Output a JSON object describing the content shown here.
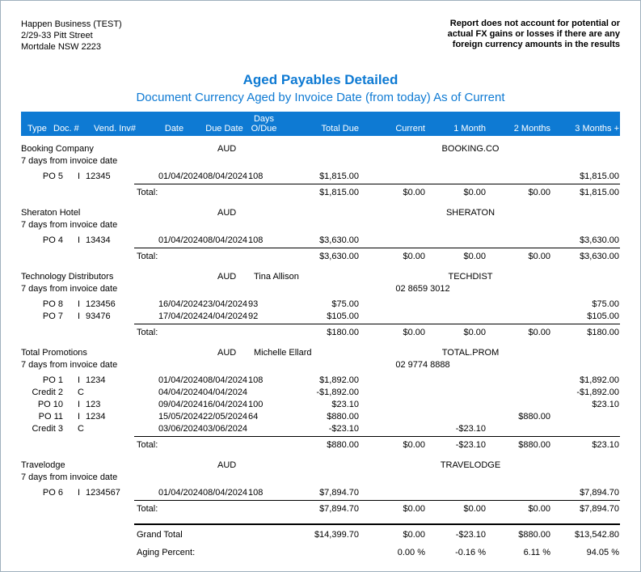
{
  "company": {
    "name": "Happen Business (TEST)",
    "address_line1": "2/29-33 Pitt Street",
    "address_line2": "Mortdale NSW 2223"
  },
  "disclaimer": {
    "line1": "Report does not account for potential or",
    "line2": "actual FX gains or losses if there are any",
    "line3": "foreign currency amounts in the results"
  },
  "report": {
    "title": "Aged Payables Detailed",
    "subtitle": "Document Currency Aged by Invoice Date (from today) As of Current"
  },
  "colors": {
    "accent_blue": "#0e7ad3",
    "header_text": "#ffffff",
    "body_text": "#000000"
  },
  "table": {
    "headers": {
      "type": "Type",
      "doc_num": "Doc. #",
      "vend_inv": "Vend. Inv#",
      "date": "Date",
      "due_date": "Due Date",
      "days_line1": "Days",
      "days_line2": "O/Due",
      "total_due": "Total Due",
      "current": "Current",
      "month1": "1 Month",
      "month2": "2 Months",
      "month3": "3 Months +"
    },
    "total_label": "Total:",
    "groups": [
      {
        "name": "Booking Company",
        "terms": "7 days from invoice date",
        "currency": "AUD",
        "contact": "",
        "code": "BOOKING.CO",
        "phone": "",
        "rows": [
          {
            "doc": "PO 5",
            "type_letter": "I",
            "vend_inv": "12345",
            "date": "01/04/2024",
            "due_date": "08/04/2024",
            "days": "108",
            "total_due": "$1,815.00",
            "month3": "$1,815.00"
          }
        ],
        "total": {
          "total_due": "$1,815.00",
          "current": "$0.00",
          "month1": "$0.00",
          "month2": "$0.00",
          "month3": "$1,815.00"
        }
      },
      {
        "name": "Sheraton Hotel",
        "terms": "7 days from invoice date",
        "currency": "AUD",
        "contact": "",
        "code": "SHERATON",
        "phone": "",
        "rows": [
          {
            "doc": "PO 4",
            "type_letter": "I",
            "vend_inv": "13434",
            "date": "01/04/2024",
            "due_date": "08/04/2024",
            "days": "108",
            "total_due": "$3,630.00",
            "month3": "$3,630.00"
          }
        ],
        "total": {
          "total_due": "$3,630.00",
          "current": "$0.00",
          "month1": "$0.00",
          "month2": "$0.00",
          "month3": "$3,630.00"
        }
      },
      {
        "name": "Technology Distributors",
        "terms": "7 days from invoice date",
        "currency": "AUD",
        "contact": "Tina Allison",
        "code": "TECHDIST",
        "phone": "02 8659 3012",
        "rows": [
          {
            "doc": "PO 8",
            "type_letter": "I",
            "vend_inv": "123456",
            "date": "16/04/2024",
            "due_date": "23/04/2024",
            "days": "93",
            "total_due": "$75.00",
            "month3": "$75.00"
          },
          {
            "doc": "PO 7",
            "type_letter": "I",
            "vend_inv": "93476",
            "date": "17/04/2024",
            "due_date": "24/04/2024",
            "days": "92",
            "total_due": "$105.00",
            "month3": "$105.00"
          }
        ],
        "total": {
          "total_due": "$180.00",
          "current": "$0.00",
          "month1": "$0.00",
          "month2": "$0.00",
          "month3": "$180.00"
        }
      },
      {
        "name": "Total Promotions",
        "terms": "7 days from invoice date",
        "currency": "AUD",
        "contact": "Michelle Ellard",
        "code": "TOTAL.PROM",
        "phone": "02 9774 8888",
        "rows": [
          {
            "doc": "PO 1",
            "type_letter": "I",
            "vend_inv": "1234",
            "date": "01/04/2024",
            "due_date": "08/04/2024",
            "days": "108",
            "total_due": "$1,892.00",
            "month3": "$1,892.00"
          },
          {
            "doc": "Credit 2",
            "type_letter": "C",
            "vend_inv": "",
            "date": "04/04/2024",
            "due_date": "04/04/2024",
            "days": "",
            "total_due": "-$1,892.00",
            "month3": "-$1,892.00"
          },
          {
            "doc": "PO 10",
            "type_letter": "I",
            "vend_inv": "123",
            "date": "09/04/2024",
            "due_date": "16/04/2024",
            "days": "100",
            "total_due": "$23.10",
            "month3": "$23.10"
          },
          {
            "doc": "PO 11",
            "type_letter": "I",
            "vend_inv": "1234",
            "date": "15/05/2024",
            "due_date": "22/05/2024",
            "days": "64",
            "total_due": "$880.00",
            "month2": "$880.00"
          },
          {
            "doc": "Credit 3",
            "type_letter": "C",
            "vend_inv": "",
            "date": "03/06/2024",
            "due_date": "03/06/2024",
            "days": "",
            "total_due": "-$23.10",
            "month1": "-$23.10"
          }
        ],
        "total": {
          "total_due": "$880.00",
          "current": "$0.00",
          "month1": "-$23.10",
          "month2": "$880.00",
          "month3": "$23.10"
        }
      },
      {
        "name": "Travelodge",
        "terms": "7 days from invoice date",
        "currency": "AUD",
        "contact": "",
        "code": "TRAVELODGE",
        "phone": "",
        "rows": [
          {
            "doc": "PO 6",
            "type_letter": "I",
            "vend_inv": "1234567",
            "date": "01/04/2024",
            "due_date": "08/04/2024",
            "days": "108",
            "total_due": "$7,894.70",
            "month3": "$7,894.70"
          }
        ],
        "total": {
          "total_due": "$7,894.70",
          "current": "$0.00",
          "month1": "$0.00",
          "month2": "$0.00",
          "month3": "$7,894.70"
        }
      }
    ],
    "grand_total": {
      "label": "Grand Total",
      "total_due": "$14,399.70",
      "current": "$0.00",
      "month1": "-$23.10",
      "month2": "$880.00",
      "month3": "$13,542.80"
    },
    "aging": {
      "label": "Aging Percent:",
      "current": "0.00 %",
      "month1": "-0.16 %",
      "month2": "6.11 %",
      "month3": "94.05 %"
    }
  }
}
